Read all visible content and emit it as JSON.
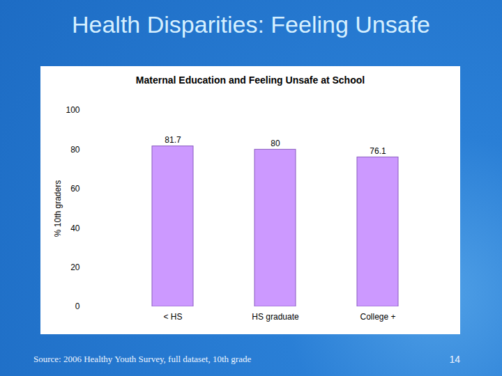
{
  "slide": {
    "title": "Health Disparities: Feeling Unsafe",
    "source": "Source: 2006 Healthy Youth Survey, full dataset, 10th grade",
    "page": 14
  },
  "chart_data": {
    "type": "bar",
    "title": "Maternal Education and Feeling Unsafe at School",
    "y_label": "% 10th graders",
    "categories": [
      "< HS",
      "HS graduate",
      "College +"
    ],
    "values": [
      81.7,
      80,
      76.1
    ],
    "color": "#cc99ff",
    "ylim": [
      0,
      100
    ],
    "yticks": [
      0,
      20,
      40,
      60,
      80,
      100
    ],
    "grid": false,
    "data_labels": true
  }
}
